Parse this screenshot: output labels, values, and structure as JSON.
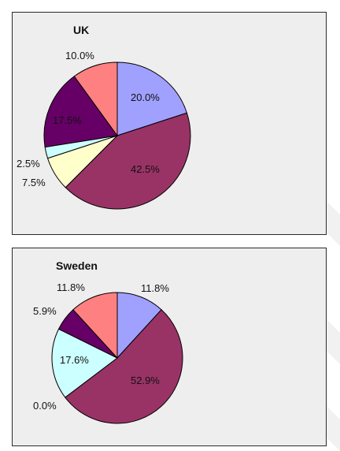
{
  "chart_data": [
    {
      "type": "pie",
      "title": "UK",
      "labels": [
        "20.0%",
        "42.5%",
        "7.5%",
        "2.5%",
        "17.5%",
        "10.0%"
      ],
      "values": [
        20.0,
        42.5,
        7.5,
        2.5,
        17.5,
        10.0
      ],
      "colors": [
        "#a0a0ff",
        "#993366",
        "#ffffcc",
        "#ccffff",
        "#660066",
        "#ff8080"
      ]
    },
    {
      "type": "pie",
      "title": "Sweden",
      "labels": [
        "11.8%",
        "52.9%",
        "0.0%",
        "17.6%",
        "5.9%",
        "11.8%"
      ],
      "values": [
        11.8,
        52.9,
        0.0,
        17.6,
        5.9,
        11.8
      ],
      "colors": [
        "#a0a0ff",
        "#993366",
        "#ffffcc",
        "#ccffff",
        "#660066",
        "#ff8080"
      ]
    }
  ]
}
